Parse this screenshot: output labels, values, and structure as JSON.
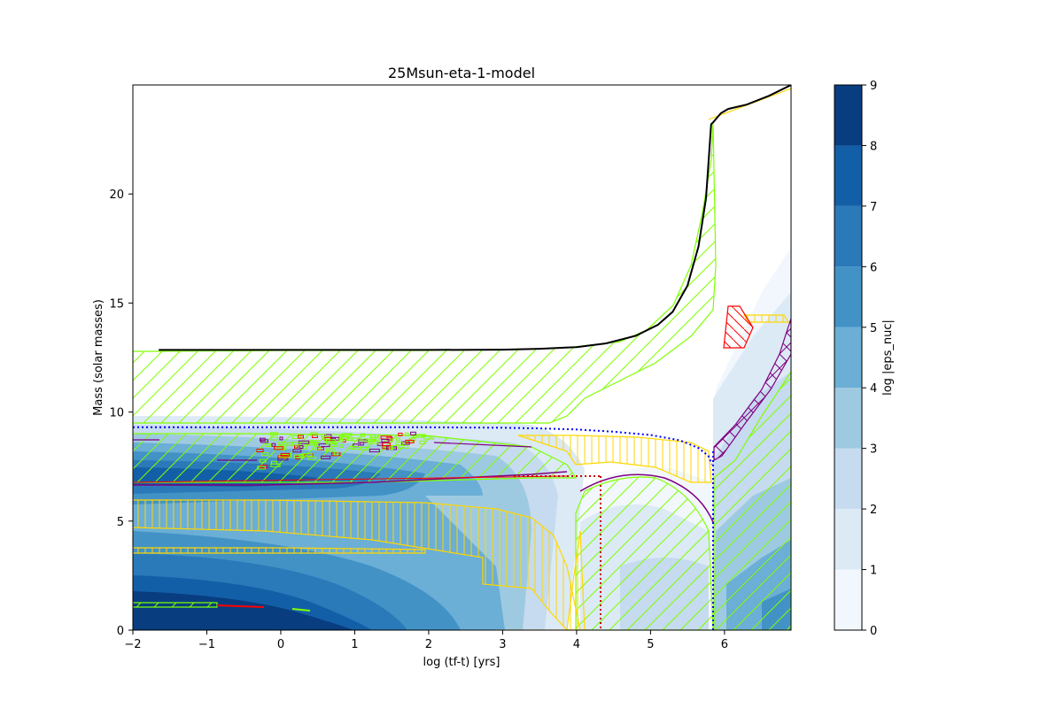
{
  "chart_data": {
    "type": "heatmap",
    "title": "25Msun-eta-1-model",
    "xlabel": "log (tf-t) [yrs]",
    "ylabel": "Mass (solar masses)",
    "xlim": [
      -2,
      6.9
    ],
    "ylim": [
      0,
      25
    ],
    "xticks": [
      -2,
      -1,
      0,
      1,
      2,
      3,
      4,
      5,
      6
    ],
    "yticks": [
      0,
      5,
      10,
      15,
      20
    ],
    "colorbar": {
      "label": "log |eps_nuc|",
      "levels": [
        0,
        1,
        2,
        3,
        4,
        5,
        6,
        7,
        8,
        9
      ],
      "colors": [
        "#f2f7fd",
        "#dceaf6",
        "#c6dbef",
        "#9ecae1",
        "#6baed6",
        "#4292c6",
        "#2a7aba",
        "#135fa7",
        "#083d80"
      ]
    },
    "colors": {
      "total_mass": "#000000",
      "convection": "#7fff00",
      "overshoot": "#ffd700",
      "thermohaline": "#ff0000",
      "semiconvection": "#800080",
      "boundary_dotted": "#0000ff",
      "boundary_red_dotted": "#cc0000"
    },
    "total_mass_curve": {
      "x": [
        -1.65,
        -1,
        0,
        1,
        2,
        3,
        3.5,
        4,
        4.4,
        4.8,
        5.1,
        5.3,
        5.5,
        5.65,
        5.75,
        5.82,
        5.85,
        5.95,
        6.05,
        6.3,
        6.6,
        6.9
      ],
      "y": [
        12.85,
        12.85,
        12.85,
        12.85,
        12.85,
        12.86,
        12.9,
        12.98,
        13.15,
        13.5,
        14.0,
        14.6,
        15.8,
        17.6,
        19.8,
        23.2,
        23.3,
        23.7,
        23.9,
        24.1,
        24.5,
        25.0
      ]
    },
    "boundary_blue_dotted": {
      "x": [
        -2,
        0,
        2,
        3,
        3.5,
        4,
        4.5,
        5,
        5.4,
        5.65,
        5.78,
        5.83
      ],
      "y": [
        9.3,
        9.3,
        9.3,
        9.28,
        9.25,
        9.2,
        9.1,
        8.95,
        8.7,
        8.35,
        8.0,
        7.6
      ]
    }
  }
}
